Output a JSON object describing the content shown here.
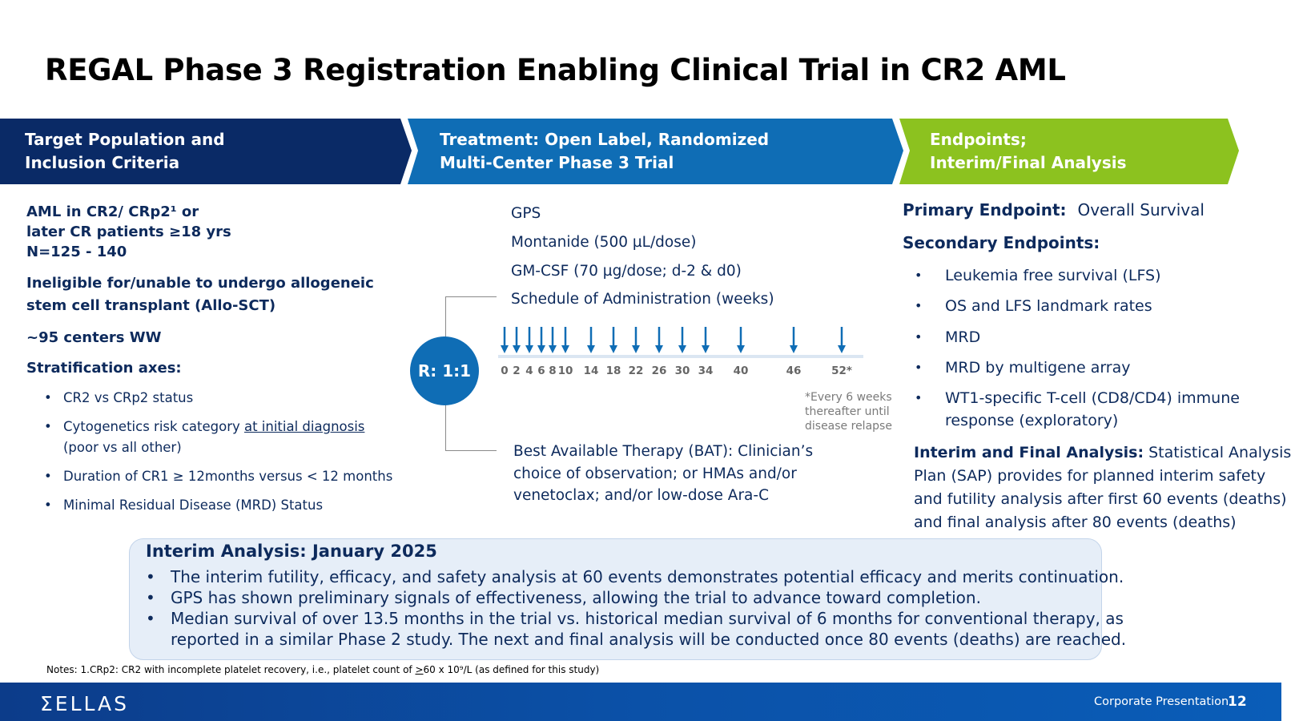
{
  "slide": {
    "title": "REGAL Phase 3 Registration Enabling Clinical Trial in CR2 AML"
  },
  "colors": {
    "navy": "#0a2a66",
    "blue": "#0f6db5",
    "green": "#8cc21f",
    "text": "#0d2a5c",
    "box_bg": "#e6eef8"
  },
  "headers": {
    "population": {
      "line1": "Target Population and",
      "line2": "Inclusion Criteria"
    },
    "treatment": {
      "line1": "Treatment: Open Label, Randomized",
      "line2": "Multi-Center Phase 3 Trial"
    },
    "endpoints": {
      "line1": "Endpoints;",
      "line2": "Interim/Final Analysis"
    }
  },
  "population": {
    "criteria_line1": "AML in CR2/ CRp2¹ or",
    "criteria_line2": "later CR patients ≥18 yrs",
    "criteria_line3": "N=125 - 140",
    "ineligible_line1": "Ineligible for/unable to undergo allogeneic",
    "ineligible_line2": "stem cell transplant (Allo-SCT)",
    "centers": "~95 centers WW",
    "stratification_title": "Stratification axes:",
    "bullet_char": "•",
    "strat_1": "CR2 vs CRp2 status",
    "strat_2_pre": "Cytogenetics risk category ",
    "strat_2_underlined": "at initial diagnosis",
    "strat_2_line2": "(poor vs all other)",
    "strat_3": "Duration of CR1 ≥ 12months versus < 12 months",
    "strat_4": "Minimal Residual Disease (MRD) Status"
  },
  "treatment": {
    "arm_1": "GPS",
    "arm_2": "Montanide (500 µL/dose)",
    "arm_3": "GM-CSF (70 µg/dose; d-2 & d0)",
    "arm_4": "Schedule of Administration (weeks)",
    "randomization": "R: 1:1",
    "schedule_weeks": [
      "0",
      "2",
      "4",
      "6",
      "8",
      "10",
      "14",
      "18",
      "22",
      "26",
      "30",
      "34",
      "40",
      "46",
      "52*"
    ],
    "schedule_note_1": "*Every 6 weeks",
    "schedule_note_2": "thereafter until",
    "schedule_note_3": "disease relapse",
    "bat_line1": "Best Available Therapy (BAT): Clinician’s",
    "bat_line2": "choice of observation; or HMAs and/or",
    "bat_line3": "venetoclax; and/or low-dose Ara-C"
  },
  "endpoints": {
    "primary_label": "Primary Endpoint:",
    "primary_value": "Overall Survival",
    "secondary_label": "Secondary Endpoints:",
    "bullet_char": "•",
    "sec_1": "Leukemia free survival (LFS)",
    "sec_2": "OS and LFS landmark rates",
    "sec_3": "MRD",
    "sec_4": "MRD by multigene array",
    "sec_5_line1": "WT1-specific T-cell (CD8/CD4) immune",
    "sec_5_line2": "response (exploratory)",
    "interim_label": "Interim and Final Analysis:",
    "interim_line1": " Statistical Analysis",
    "interim_line2": "Plan (SAP) provides for planned interim safety",
    "interim_line3": "and futility analysis after first 60 events (deaths)",
    "interim_line4": "and final analysis after 80 events (deaths)"
  },
  "interim_box": {
    "title": "Interim Analysis: January 2025",
    "bullet_char": "•",
    "bullet_1": "The interim futility, efficacy, and safety analysis at 60 events demonstrates potential efficacy and merits continuation.",
    "bullet_2": "GPS has shown preliminary signals of effectiveness, allowing the trial to advance toward completion.",
    "bullet_3_line1": "Median survival of over 13.5 months in the trial vs. historical median survival of 6 months for conventional therapy, as",
    "bullet_3_line2": "reported in a similar Phase 2 study. The next and final analysis will be conducted once 80 events (deaths) are reached."
  },
  "notes": {
    "pre": "Notes:  1.CRp2: CR2 with incomplete platelet recovery, i.e., platelet count of ",
    "underlined": ">",
    "post": "60 x 10⁹/L (as defined for this study)"
  },
  "footer": {
    "logo": "ƩELLAS",
    "label": "Corporate Presentation",
    "page": "12"
  }
}
